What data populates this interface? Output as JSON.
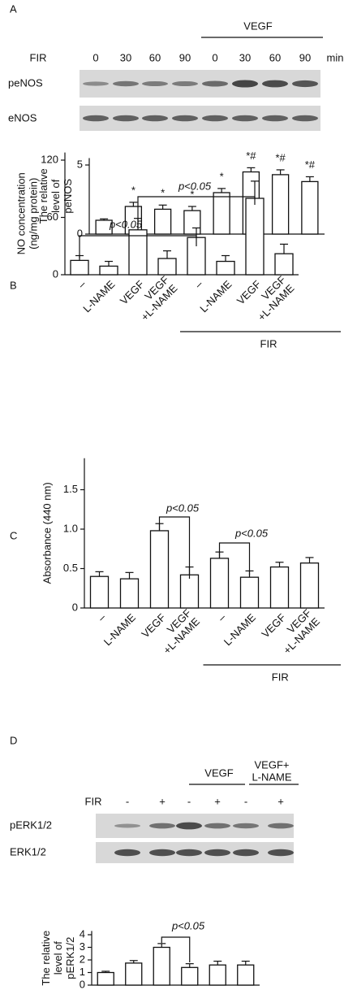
{
  "chart_data": [
    {
      "type": "bar",
      "panel": "A",
      "blot": {
        "group_label": "VEGF",
        "row_label": "FIR",
        "lanes": [
          "0",
          "30",
          "60",
          "90",
          "0",
          "30",
          "60",
          "90"
        ],
        "unit": "min",
        "bands": [
          "peNOS",
          "eNOS"
        ]
      },
      "ylabel": "The relative\nlevel of\npeNOS",
      "values": [
        1.0,
        2.0,
        1.8,
        1.7,
        3.0,
        4.5,
        4.3,
        3.8
      ],
      "errors": [
        0.1,
        0.3,
        0.3,
        0.3,
        0.3,
        0.3,
        0.35,
        0.35
      ],
      "bar_annotations": [
        null,
        "*",
        "*",
        "*",
        "*",
        "*#",
        "*#",
        "*#"
      ],
      "ylim": [
        0,
        5.5
      ],
      "yticks": [
        0,
        5
      ],
      "color": "#ffffff"
    },
    {
      "type": "bar",
      "panel": "B",
      "ylabel": "NO concentration\n(ng/mg protein)",
      "categories": [
        "–",
        "L-NAME",
        "VEGF",
        "VEGF\n+L-NAME",
        "–",
        "L-NAME",
        "VEGF",
        "VEGF\n+L-NAME"
      ],
      "values": [
        15,
        9,
        47,
        17,
        39,
        14,
        80,
        22
      ],
      "errors": [
        5,
        5,
        12,
        8,
        10,
        6,
        18,
        10
      ],
      "group_label": "FIR",
      "annotations": [
        "p<0.05",
        "p<0.05"
      ],
      "ylim": [
        0,
        128
      ],
      "yticks": [
        0,
        60,
        120
      ],
      "color": "#ffffff"
    },
    {
      "type": "bar",
      "panel": "C",
      "ylabel": "Absorbance (440 nm)",
      "categories": [
        "–",
        "L-NAME",
        "VEGF",
        "VEGF\n+L-NAME",
        "–",
        "L-NAME",
        "VEGF",
        "VEGF\n+L-NAME"
      ],
      "values": [
        0.4,
        0.37,
        0.98,
        0.42,
        0.63,
        0.39,
        0.52,
        0.57
      ],
      "errors": [
        0.06,
        0.08,
        0.09,
        0.1,
        0.08,
        0.08,
        0.06,
        0.07
      ],
      "group_label": "FIR",
      "annotations": [
        "p<0.05",
        "p<0.05"
      ],
      "ylim": [
        0,
        1.9
      ],
      "yticks": [
        0,
        0.5,
        {
          "value": 1,
          "label": "1.0"
        },
        1.5
      ],
      "color": "#ffffff"
    },
    {
      "type": "bar",
      "panel": "D",
      "blot": {
        "group_labels": [
          "VEGF",
          "VEGF+\nL-NAME"
        ],
        "row_label": "FIR",
        "lanes": [
          "-",
          "+",
          "-",
          "+",
          "-",
          "+"
        ],
        "bands": [
          "pERK1/2",
          "ERK1/2"
        ]
      },
      "ylabel": "The relative\nlevel of\npERK1/2",
      "values": [
        1.0,
        1.75,
        3.0,
        1.4,
        1.6,
        1.6
      ],
      "errors": [
        0.1,
        0.2,
        0.3,
        0.3,
        0.3,
        0.3
      ],
      "annotations": [
        "p<0.05"
      ],
      "ylim": [
        0,
        4.3
      ],
      "yticks": [
        0,
        1,
        2,
        3,
        4
      ],
      "color": "#ffffff"
    }
  ]
}
